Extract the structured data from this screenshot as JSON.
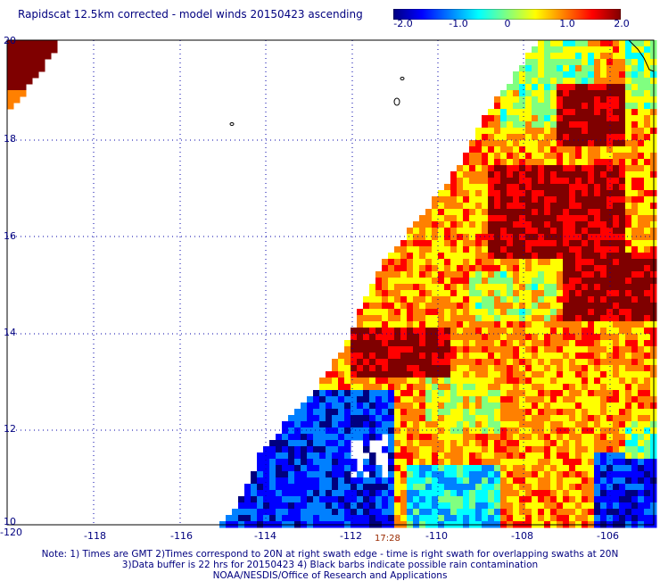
{
  "title": "Rapidscat 12.5km corrected - model winds 20150423 ascending",
  "colorbar": {
    "ticks": [
      "-2.0",
      "-1.0",
      "0",
      "1.0",
      "2.0"
    ],
    "range": [
      -2.0,
      2.0
    ],
    "colors": [
      "#00007f",
      "#0000ff",
      "#0080ff",
      "#00ffff",
      "#80ff80",
      "#ffff00",
      "#ff8000",
      "#ff0000",
      "#7f0000"
    ]
  },
  "axes": {
    "lon_labels": [
      "-120",
      "-118",
      "-116",
      "-114",
      "-112",
      "-110",
      "-108",
      "-106"
    ],
    "lat_labels": [
      "20",
      "18",
      "16",
      "14",
      "12",
      "10"
    ],
    "lon_range": [
      -120,
      -105
    ],
    "lat_range": [
      10,
      20
    ]
  },
  "time_label": "17:28",
  "notes": {
    "line1": "Note: 1) Times are GMT 2)Times correspond to 20N at right swath edge - time is right swath for overlapping swaths at 20N",
    "line2": "3)Data buffer is 22 hrs for 20150423 4) Black barbs indicate possible rain contamination",
    "line3": "NOAA/NESDIS/Office of Research and Applications"
  }
}
